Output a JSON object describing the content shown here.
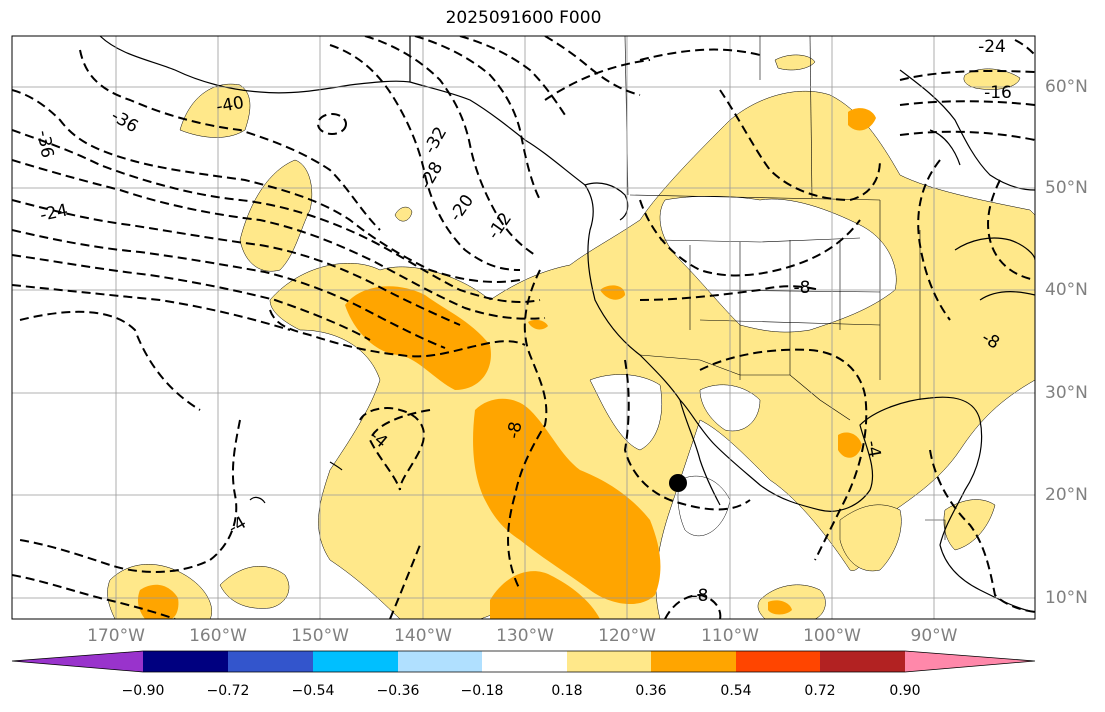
{
  "title": "2025091600 F000",
  "latitude_labels": [
    "60°N",
    "50°N",
    "40°N",
    "30°N",
    "20°N",
    "10°N"
  ],
  "longitude_labels": [
    "170°W",
    "160°W",
    "150°W",
    "140°W",
    "130°W",
    "120°W",
    "110°W",
    "100°W",
    "90°W"
  ],
  "contour_labels": [
    "-40",
    "-36",
    "-36",
    "-32",
    "-28",
    "-24",
    "-24",
    "-20",
    "-16",
    "-12",
    "-8",
    "-8",
    "-8",
    "-4",
    "-4",
    "-8",
    "-4"
  ],
  "colorbar": {
    "tick_labels": [
      "−0.90",
      "−0.72",
      "−0.54",
      "−0.36",
      "−0.18",
      "0.18",
      "0.36",
      "0.54",
      "0.72",
      "0.90"
    ],
    "colors": [
      "#9933cc",
      "#000080",
      "#3355cc",
      "#00bfff",
      "#b0e0ff",
      "#ffffff",
      "#ffe88a",
      "#ffa500",
      "#ff4500",
      "#b22222",
      "#ff88aa"
    ],
    "extend": "both"
  },
  "colors": {
    "shade_light": "#ffe88a",
    "shade_mid": "#ffa500",
    "shade_high": "#ff8c00",
    "contour": "#000000",
    "gridline": "#999999"
  },
  "marker": {
    "label": "",
    "color": "#000000"
  }
}
